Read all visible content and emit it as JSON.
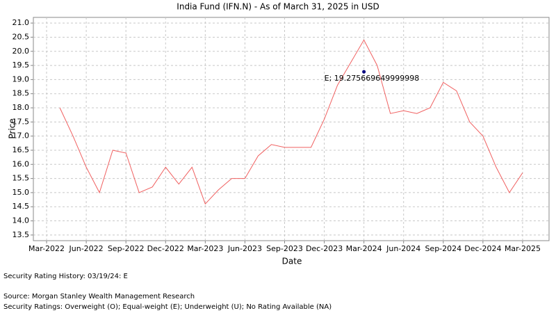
{
  "chart_data": {
    "type": "line",
    "title": "India Fund  (IFN.N) - As of March 31, 2025 in USD",
    "x_label": "Date",
    "y_label": "Price",
    "x": [
      "2022-04",
      "2022-05",
      "2022-06",
      "2022-07",
      "2022-08",
      "2022-09",
      "2022-10",
      "2022-11",
      "2022-12",
      "2023-01",
      "2023-02",
      "2023-03",
      "2023-04",
      "2023-05",
      "2023-06",
      "2023-07",
      "2023-08",
      "2023-09",
      "2023-10",
      "2023-11",
      "2023-12",
      "2024-01",
      "2024-02",
      "2024-03",
      "2024-04",
      "2024-05",
      "2024-06",
      "2024-07",
      "2024-08",
      "2024-09",
      "2024-10",
      "2024-11",
      "2024-12",
      "2025-01",
      "2025-02",
      "2025-03"
    ],
    "series": [
      {
        "name": "India Fund",
        "color": "#f06060",
        "values": [
          18.0,
          17.0,
          15.9,
          15.0,
          16.5,
          16.4,
          15.0,
          15.2,
          15.9,
          15.3,
          15.9,
          14.6,
          15.1,
          15.5,
          15.5,
          16.3,
          16.7,
          16.6,
          16.6,
          16.6,
          17.6,
          18.8,
          19.6,
          20.4,
          19.5,
          17.8,
          17.9,
          17.8,
          18.0,
          18.9,
          18.6,
          17.5,
          17.0,
          15.9,
          15.0,
          15.7
        ]
      }
    ],
    "annotation": {
      "x": "2024-03",
      "value": 19.275669649999998,
      "label": "E; 19.275669649999998",
      "color": "#000080"
    },
    "xlim": [
      "2022-02",
      "2025-05"
    ],
    "xticks": [
      {
        "value": "2022-03",
        "label": "Mar-2022"
      },
      {
        "value": "2022-06",
        "label": "Jun-2022"
      },
      {
        "value": "2022-09",
        "label": "Sep-2022"
      },
      {
        "value": "2022-12",
        "label": "Dec-2022"
      },
      {
        "value": "2023-03",
        "label": "Mar-2023"
      },
      {
        "value": "2023-06",
        "label": "Jun-2023"
      },
      {
        "value": "2023-09",
        "label": "Sep-2023"
      },
      {
        "value": "2023-12",
        "label": "Dec-2023"
      },
      {
        "value": "2024-03",
        "label": "Mar-2024"
      },
      {
        "value": "2024-06",
        "label": "Jun-2024"
      },
      {
        "value": "2024-09",
        "label": "Sep-2024"
      },
      {
        "value": "2024-12",
        "label": "Dec-2024"
      },
      {
        "value": "2025-03",
        "label": "Mar-2025"
      }
    ],
    "ylim": [
      13.3,
      21.2
    ],
    "yticks": [
      13.5,
      {
        "value": 14,
        "label": "14.0"
      },
      14.5,
      {
        "value": 15,
        "label": "15.0"
      },
      15.5,
      {
        "value": 16,
        "label": "16.0"
      },
      16.5,
      {
        "value": 17,
        "label": "17.0"
      },
      17.5,
      {
        "value": 18,
        "label": "18.0"
      },
      18.5,
      {
        "value": 19,
        "label": "19.0"
      },
      19.5,
      {
        "value": 20,
        "label": "20.0"
      },
      20.5,
      {
        "value": 21,
        "label": "21.0"
      }
    ],
    "grid": true,
    "notes": [
      "Security Rating History: 03/19/24: E",
      "Source: Morgan Stanley Wealth Management Research",
      "Security Ratings: Overweight (O); Equal-weight (E); Underweight (U); No Rating Available (NA)"
    ]
  }
}
